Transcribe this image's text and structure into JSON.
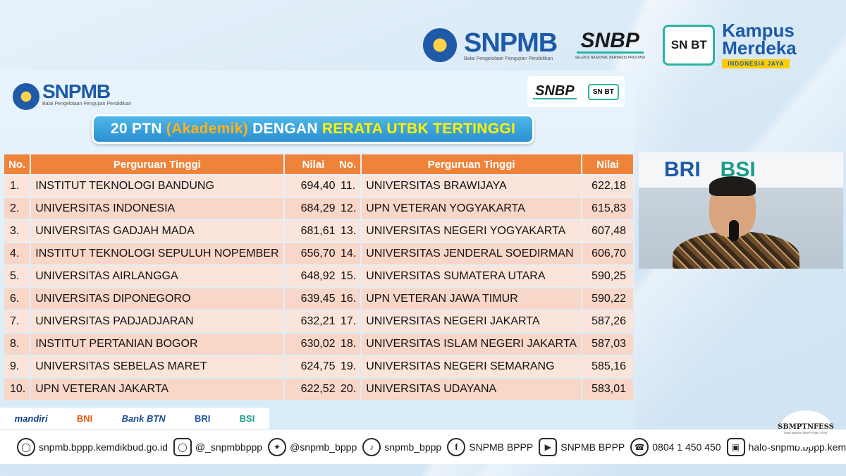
{
  "header": {
    "snpmb_title": "SNPMB",
    "snpmb_subtitle": "Balai Pengelolaan Pengujian Pendidikan",
    "snbp_title": "SNBP",
    "snbp_caption": "SELEKSI NASIONAL BERBASIS PRESTASI",
    "snbt_label": "SN BT",
    "kampus_line1": "Kampus",
    "kampus_line2": "Merdeka",
    "kampus_tagline": "INDONESIA JAYA"
  },
  "slide": {
    "snpmb_title": "SNPMB",
    "snpmb_subtitle": "Balai Pengelolaan Pengujian Pendidikan",
    "badge_snbp": "SNBP",
    "badge_snbt": "SN BT",
    "banner_part1": "20 PTN",
    "banner_part2": "(Akademik)",
    "banner_part3": "DENGAN",
    "banner_part4": "RERATA UTBK TERTINGGI",
    "table_headers": {
      "no": "No.",
      "name": "Perguruan Tinggi",
      "value": "Nilai"
    },
    "left_rows": [
      {
        "no": "1.",
        "name": "INSTITUT TEKNOLOGI BANDUNG",
        "value": "694,40"
      },
      {
        "no": "2.",
        "name": "UNIVERSITAS INDONESIA",
        "value": "684,29"
      },
      {
        "no": "3.",
        "name": "UNIVERSITAS GADJAH MADA",
        "value": "681,61"
      },
      {
        "no": "4.",
        "name": "INSTITUT TEKNOLOGI SEPULUH NOPEMBER",
        "value": "656,70"
      },
      {
        "no": "5.",
        "name": "UNIVERSITAS AIRLANGGA",
        "value": "648,92"
      },
      {
        "no": "6.",
        "name": "UNIVERSITAS DIPONEGORO",
        "value": "639,45"
      },
      {
        "no": "7.",
        "name": "UNIVERSITAS PADJADJARAN",
        "value": "632,21"
      },
      {
        "no": "8.",
        "name": "INSTITUT PERTANIAN BOGOR",
        "value": "630,02"
      },
      {
        "no": "9.",
        "name": "UNIVERSITAS SEBELAS MARET",
        "value": "624,75"
      },
      {
        "no": "10.",
        "name": "UPN VETERAN JAKARTA",
        "value": "622,52"
      }
    ],
    "right_rows": [
      {
        "no": "11.",
        "name": "UNIVERSITAS BRAWIJAYA",
        "value": "622,18"
      },
      {
        "no": "12.",
        "name": "UPN VETERAN YOGYAKARTA",
        "value": "615,83"
      },
      {
        "no": "13.",
        "name": "UNIVERSITAS NEGERI YOGYAKARTA",
        "value": "607,48"
      },
      {
        "no": "14.",
        "name": "UNIVERSITAS JENDERAL SOEDIRMAN",
        "value": "606,70"
      },
      {
        "no": "15.",
        "name": "UNIVERSITAS SUMATERA UTARA",
        "value": "590,25"
      },
      {
        "no": "16.",
        "name": "UPN VETERAN JAWA TIMUR",
        "value": "590,22"
      },
      {
        "no": "17.",
        "name": "UNIVERSITAS NEGERI JAKARTA",
        "value": "587,26"
      },
      {
        "no": "18.",
        "name": "UNIVERSITAS ISLAM NEGERI JAKARTA",
        "value": "587,03"
      },
      {
        "no": "19.",
        "name": "UNIVERSITAS NEGERI SEMARANG",
        "value": "585,16"
      },
      {
        "no": "20.",
        "name": "UNIVERSITAS UDAYANA",
        "value": "583,01"
      }
    ],
    "sponsors": [
      "mandiri",
      "BNI",
      "Bank BTN",
      "BRI",
      "BSI"
    ]
  },
  "video": {
    "wall_text_1": "BRI",
    "wall_text_2": "BSI"
  },
  "footer": {
    "website": "snpmb.bppp.kemdikbud.go.id",
    "instagram": "@_snpmbbppp",
    "twitter": "@snpmb_bppp",
    "tiktok": "snpmb_bppp",
    "facebook": "SNPMB BPPP",
    "youtube": "SNPMB BPPP",
    "phone": "0804 1 450 450",
    "helpdesk": "halo-snpmb.bppp.kemd"
  },
  "watermark": {
    "title": "SBMPTNFESS",
    "subtitle": "Base seputar SBMPTN dan UTBK"
  },
  "colors": {
    "brand_blue": "#1c5aa7",
    "header_orange": "#f0833a",
    "banner_blue": "#2a8fd0",
    "accent_teal": "#2bb3a3"
  }
}
